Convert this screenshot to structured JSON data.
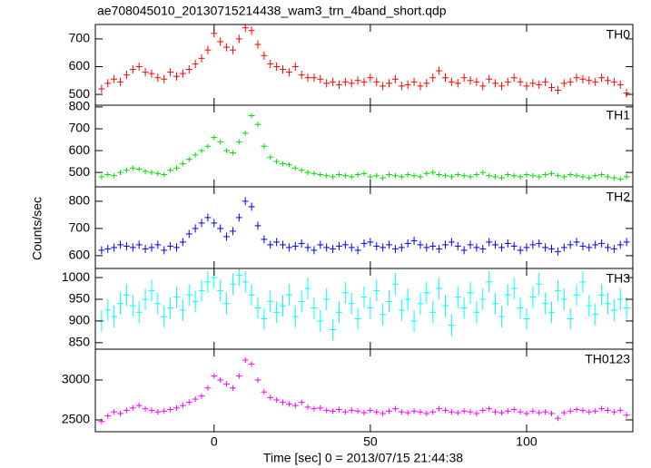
{
  "chart_data": {
    "type": "line",
    "title": "ae708045010_20130715214438_wam3_trn_4band_short.qdp",
    "xlabel": "Time [sec] 0 = 2013/07/15 21:44:38",
    "ylabel": "Counts/sec",
    "xlim": [
      -38,
      134
    ],
    "xticks": [
      0,
      50,
      100
    ],
    "x": [
      -36,
      -34,
      -32,
      -30,
      -28,
      -26,
      -24,
      -22,
      -20,
      -18,
      -16,
      -14,
      -12,
      -10,
      -8,
      -6,
      -4,
      -2,
      0,
      2,
      4,
      6,
      8,
      10,
      12,
      14,
      16,
      18,
      20,
      22,
      24,
      26,
      28,
      30,
      32,
      34,
      36,
      38,
      40,
      42,
      44,
      46,
      48,
      50,
      52,
      54,
      56,
      58,
      60,
      62,
      64,
      66,
      68,
      70,
      72,
      74,
      76,
      78,
      80,
      82,
      84,
      86,
      88,
      90,
      92,
      94,
      96,
      98,
      100,
      102,
      104,
      106,
      108,
      110,
      112,
      114,
      116,
      118,
      120,
      122,
      124,
      126,
      128,
      130,
      132
    ],
    "series": [
      {
        "name": "TH0",
        "color": "#ff0000",
        "error": 15,
        "ylim": [
          461,
          752
        ],
        "yticks": [
          500,
          600,
          700
        ],
        "values": [
          520,
          540,
          555,
          545,
          570,
          590,
          600,
          580,
          575,
          560,
          555,
          580,
          565,
          575,
          590,
          610,
          630,
          660,
          720,
          690,
          670,
          660,
          700,
          740,
          730,
          680,
          640,
          610,
          600,
          590,
          580,
          600,
          570,
          560,
          560,
          555,
          540,
          545,
          535,
          545,
          540,
          550,
          545,
          560,
          545,
          530,
          540,
          555,
          530,
          535,
          545,
          530,
          540,
          560,
          585,
          560,
          545,
          540,
          560,
          550,
          545,
          530,
          555,
          540,
          530,
          545,
          560,
          545,
          530,
          540,
          535,
          545,
          525,
          515,
          540,
          545,
          560,
          555,
          550,
          545,
          560,
          550,
          545,
          535,
          505
        ]
      },
      {
        "name": "TH1",
        "color": "#00e000",
        "error": 12,
        "ylim": [
          434,
          808
        ],
        "yticks": [
          500,
          600,
          700,
          800
        ],
        "values": [
          480,
          490,
          485,
          500,
          510,
          520,
          515,
          505,
          500,
          495,
          490,
          510,
          520,
          540,
          560,
          580,
          600,
          620,
          660,
          640,
          600,
          590,
          640,
          680,
          760,
          720,
          620,
          570,
          550,
          540,
          535,
          520,
          510,
          500,
          495,
          490,
          485,
          480,
          490,
          485,
          480,
          490,
          495,
          480,
          485,
          475,
          490,
          485,
          480,
          490,
          485,
          480,
          495,
          500,
          490,
          485,
          480,
          490,
          485,
          480,
          490,
          500,
          485,
          480,
          475,
          490,
          485,
          480,
          490,
          485,
          480,
          490,
          495,
          485,
          480,
          490,
          485,
          480,
          475,
          485,
          490,
          480,
          475,
          470,
          480
        ]
      },
      {
        "name": "TH2",
        "color": "#0000ff",
        "error": 15,
        "ylim": [
          553,
          853
        ],
        "yticks": [
          600,
          700,
          800
        ],
        "values": [
          620,
          625,
          630,
          640,
          635,
          630,
          640,
          625,
          630,
          640,
          620,
          635,
          630,
          650,
          680,
          700,
          720,
          740,
          720,
          700,
          670,
          690,
          740,
          800,
          780,
          710,
          660,
          640,
          650,
          640,
          630,
          635,
          645,
          630,
          620,
          640,
          630,
          625,
          635,
          640,
          630,
          620,
          645,
          650,
          635,
          630,
          640,
          625,
          630,
          645,
          655,
          640,
          630,
          635,
          625,
          640,
          650,
          635,
          620,
          640,
          630,
          625,
          650,
          640,
          630,
          645,
          635,
          620,
          630,
          640,
          645,
          630,
          625,
          615,
          630,
          640,
          650,
          635,
          630,
          640,
          645,
          630,
          625,
          640,
          650
        ]
      },
      {
        "name": "TH3",
        "color": "#00ffff",
        "error": 25,
        "ylim": [
          835,
          1021
        ],
        "yticks": [
          850,
          900,
          950,
          1000
        ],
        "values": [
          900,
          925,
          910,
          940,
          960,
          935,
          920,
          950,
          970,
          940,
          910,
          930,
          955,
          925,
          960,
          945,
          970,
          990,
          1000,
          970,
          940,
          985,
          1005,
          990,
          960,
          930,
          905,
          945,
          920,
          935,
          960,
          910,
          945,
          975,
          930,
          900,
          950,
          880,
          920,
          965,
          940,
          905,
          955,
          930,
          970,
          915,
          945,
          985,
          925,
          950,
          900,
          940,
          965,
          920,
          975,
          935,
          890,
          955,
          930,
          965,
          920,
          950,
          990,
          940,
          910,
          960,
          975,
          930,
          905,
          955,
          985,
          940,
          920,
          970,
          950,
          905,
          960,
          990,
          935,
          915,
          960,
          940,
          925,
          950,
          930
        ]
      },
      {
        "name": "TH0123",
        "color": "#ff00ff",
        "error": 35,
        "ylim": [
          2352,
          3386
        ],
        "yticks": [
          2500,
          3000
        ],
        "values": [
          2480,
          2550,
          2600,
          2580,
          2620,
          2650,
          2680,
          2640,
          2620,
          2600,
          2610,
          2630,
          2650,
          2680,
          2720,
          2760,
          2800,
          2900,
          3050,
          3000,
          2950,
          2900,
          3050,
          3250,
          3200,
          3000,
          2850,
          2780,
          2750,
          2720,
          2700,
          2680,
          2720,
          2660,
          2640,
          2650,
          2620,
          2610,
          2630,
          2600,
          2620,
          2610,
          2590,
          2620,
          2600,
          2580,
          2610,
          2640,
          2600,
          2590,
          2610,
          2600,
          2580,
          2600,
          2640,
          2620,
          2600,
          2590,
          2610,
          2600,
          2580,
          2620,
          2640,
          2600,
          2590,
          2610,
          2630,
          2600,
          2580,
          2610,
          2590,
          2600,
          2580,
          2520,
          2590,
          2610,
          2630,
          2620,
          2600,
          2610,
          2640,
          2620,
          2600,
          2620,
          2560
        ]
      }
    ]
  }
}
